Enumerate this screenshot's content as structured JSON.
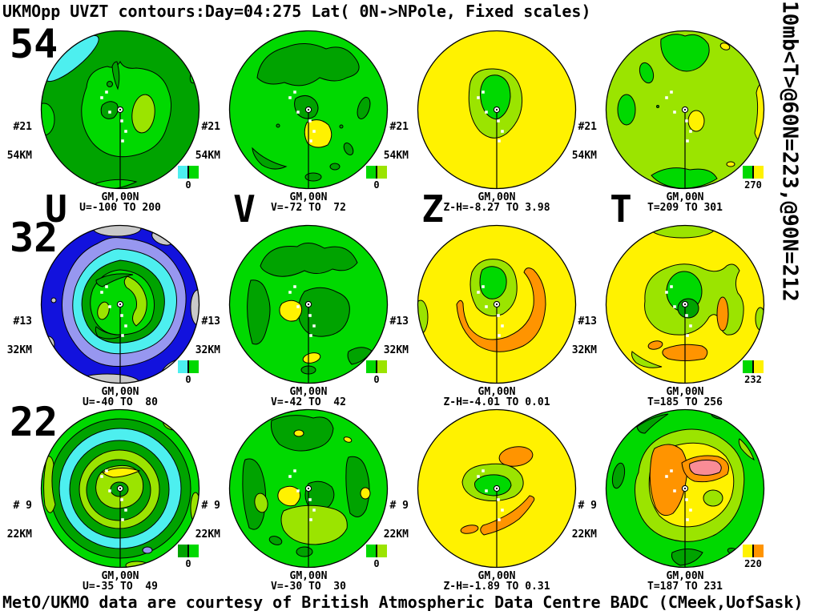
{
  "title": "UKMOpp UVZT contours:Day=04:275 Lat( 0N->NPole, Fixed scales)",
  "right_note": "10mb<T>@60N=223,@90N=212",
  "footer": "MetO/UKMO data are courtesy of British Atmospheric Data Centre BADC (CMeek,UofSask)",
  "rows": [
    "54",
    "32",
    "22"
  ],
  "cols": [
    "U",
    "V",
    "Z",
    "T"
  ],
  "palette": {
    "g1": "#00A300",
    "g2": "#00D900",
    "g3": "#9BE400",
    "cyan": "#4DEFEF",
    "blue": "#1212DD",
    "peri": "#9797F0",
    "gray": "#C9C9C9",
    "yellow": "#FFF200",
    "orange": "#FF9400",
    "pink": "#F98C96"
  },
  "panels": [
    {
      "record": "#21",
      "km": "54KM",
      "gm": "GM,00N",
      "range": "U=-100 TO 200",
      "colorbar": {
        "label": "0",
        "left": "cyan",
        "right": "g2"
      }
    },
    {
      "record": "#21",
      "km": "54KM",
      "gm": "GM,00N",
      "range": "V=-72 TO  72",
      "colorbar": {
        "label": "0",
        "left": "g2",
        "right": "g3"
      }
    },
    {
      "record": "#21",
      "km": "54KM",
      "gm": "GM,00N",
      "range": "Z-H=-8.27 TO 3.98",
      "colorbar": null
    },
    {
      "record": "#21",
      "km": "54KM",
      "gm": "GM,00N",
      "range": "T=209 TO 301",
      "colorbar": {
        "label": "270",
        "left": "g2",
        "right": "yellow"
      }
    },
    {
      "record": "#13",
      "km": "32KM",
      "gm": "GM,00N",
      "range": "U=-40 TO  80",
      "colorbar": {
        "label": "0",
        "left": "cyan",
        "right": "g2"
      }
    },
    {
      "record": "#13",
      "km": "32KM",
      "gm": "GM,00N",
      "range": "V=-42 TO  42",
      "colorbar": {
        "label": "0",
        "left": "g2",
        "right": "g3"
      }
    },
    {
      "record": "#13",
      "km": "32KM",
      "gm": "GM,00N",
      "range": "Z-H=-4.01 TO 0.01",
      "colorbar": null
    },
    {
      "record": "#13",
      "km": "32KM",
      "gm": "GM,00N",
      "range": "T=185 TO 256",
      "colorbar": {
        "label": "232",
        "left": "g2",
        "right": "yellow"
      }
    },
    {
      "record": "# 9",
      "km": "22KM",
      "gm": "GM,00N",
      "range": "U=-35 TO  49",
      "colorbar": {
        "label": "0",
        "left": "g1",
        "right": "g2"
      }
    },
    {
      "record": "# 9",
      "km": "22KM",
      "gm": "GM,00N",
      "range": "V=-30 TO  30",
      "colorbar": {
        "label": "0",
        "left": "g2",
        "right": "g3"
      }
    },
    {
      "record": "# 9",
      "km": "22KM",
      "gm": "GM,00N",
      "range": "Z-H=-1.89 TO 0.31",
      "colorbar": null
    },
    {
      "record": "# 9",
      "km": "22KM",
      "gm": "GM,00N",
      "range": "T=187 TO 231",
      "colorbar": {
        "label": "220",
        "left": "yellow",
        "right": "orange"
      }
    }
  ],
  "chart_data": [
    {
      "type": "heatmap",
      "panel": "U@54KM",
      "variable": "U",
      "height_km": 54,
      "record": "#21",
      "projection": "North polar 0N->NPole",
      "meridian": "GM,00N",
      "value_range": [
        -100,
        200
      ],
      "range_label": "U=-100 TO 200",
      "colorbar_label": "0"
    },
    {
      "type": "heatmap",
      "panel": "V@54KM",
      "variable": "V",
      "height_km": 54,
      "record": "#21",
      "projection": "North polar 0N->NPole",
      "meridian": "GM,00N",
      "value_range": [
        -72,
        72
      ],
      "range_label": "V=-72 TO  72",
      "colorbar_label": "0"
    },
    {
      "type": "heatmap",
      "panel": "Z@54KM",
      "variable": "Z-H",
      "height_km": 54,
      "record": "#21",
      "projection": "North polar 0N->NPole",
      "meridian": "GM,00N",
      "value_range": [
        -8.27,
        3.98
      ],
      "range_label": "Z-H=-8.27 TO 3.98",
      "colorbar_label": null
    },
    {
      "type": "heatmap",
      "panel": "T@54KM",
      "variable": "T",
      "height_km": 54,
      "record": "#21",
      "projection": "North polar 0N->NPole",
      "meridian": "GM,00N",
      "value_range": [
        209,
        301
      ],
      "range_label": "T=209 TO 301",
      "colorbar_label": "270"
    },
    {
      "type": "heatmap",
      "panel": "U@32KM",
      "variable": "U",
      "height_km": 32,
      "record": "#13",
      "projection": "North polar 0N->NPole",
      "meridian": "GM,00N",
      "value_range": [
        -40,
        80
      ],
      "range_label": "U=-40 TO  80",
      "colorbar_label": "0"
    },
    {
      "type": "heatmap",
      "panel": "V@32KM",
      "variable": "V",
      "height_km": 32,
      "record": "#13",
      "projection": "North polar 0N->NPole",
      "meridian": "GM,00N",
      "value_range": [
        -42,
        42
      ],
      "range_label": "V=-42 TO  42",
      "colorbar_label": "0"
    },
    {
      "type": "heatmap",
      "panel": "Z@32KM",
      "variable": "Z-H",
      "height_km": 32,
      "record": "#13",
      "projection": "North polar 0N->NPole",
      "meridian": "GM,00N",
      "value_range": [
        -4.01,
        0.01
      ],
      "range_label": "Z-H=-4.01 TO 0.01",
      "colorbar_label": null
    },
    {
      "type": "heatmap",
      "panel": "T@32KM",
      "variable": "T",
      "height_km": 32,
      "record": "#13",
      "projection": "North polar 0N->NPole",
      "meridian": "GM,00N",
      "value_range": [
        185,
        256
      ],
      "range_label": "T=185 TO 256",
      "colorbar_label": "232"
    },
    {
      "type": "heatmap",
      "panel": "U@22KM",
      "variable": "U",
      "height_km": 22,
      "record": "# 9",
      "projection": "North polar 0N->NPole",
      "meridian": "GM,00N",
      "value_range": [
        -35,
        49
      ],
      "range_label": "U=-35 TO  49",
      "colorbar_label": "0"
    },
    {
      "type": "heatmap",
      "panel": "V@22KM",
      "variable": "V",
      "height_km": 22,
      "record": "# 9",
      "projection": "North polar 0N->NPole",
      "meridian": "GM,00N",
      "value_range": [
        -30,
        30
      ],
      "range_label": "V=-30 TO  30",
      "colorbar_label": "0"
    },
    {
      "type": "heatmap",
      "panel": "Z@22KM",
      "variable": "Z-H",
      "height_km": 22,
      "record": "# 9",
      "projection": "North polar 0N->NPole",
      "meridian": "GM,00N",
      "value_range": [
        -1.89,
        0.31
      ],
      "range_label": "Z-H=-1.89 TO 0.31",
      "colorbar_label": null
    },
    {
      "type": "heatmap",
      "panel": "T@22KM",
      "variable": "T",
      "height_km": 22,
      "record": "# 9",
      "projection": "North polar 0N->NPole",
      "meridian": "GM,00N",
      "value_range": [
        187,
        231
      ],
      "range_label": "T=187 TO 231",
      "colorbar_label": "220"
    }
  ]
}
